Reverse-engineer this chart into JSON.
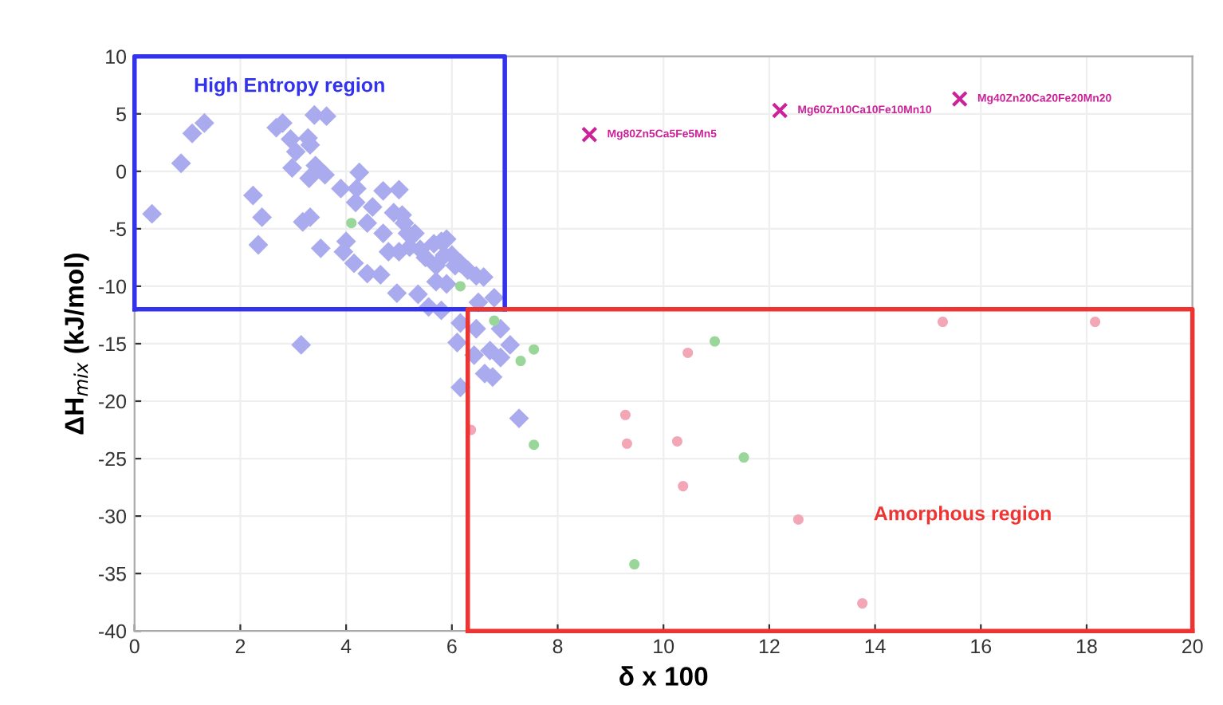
{
  "chart_data": {
    "type": "scatter",
    "xlabel": "δ x 100",
    "ylabel": "ΔH$_{mix}$ (kJ/mol)",
    "xlim": [
      0,
      20
    ],
    "ylim": [
      -40,
      10
    ],
    "xticks": [
      0,
      2,
      4,
      6,
      8,
      10,
      12,
      14,
      16,
      18,
      20
    ],
    "yticks": [
      -40,
      -35,
      -30,
      -25,
      -20,
      -15,
      -10,
      -5,
      0,
      5,
      10
    ],
    "grid": true,
    "series": [
      {
        "color": "#aaaaee",
        "marker": "diamond",
        "x": [
          0.33,
          0.88,
          1.09,
          1.32,
          2.24,
          2.41,
          2.34,
          2.68,
          2.8,
          2.95,
          3.05,
          2.98,
          3.28,
          3.32,
          3.4,
          3.63,
          3.42,
          3.3,
          3.6,
          3.18,
          3.32,
          3.52,
          3.9,
          4.25,
          4.2,
          4.18,
          4.0,
          3.95,
          4.15,
          4.4,
          4.65,
          4.5,
          4.7,
          5.0,
          4.4,
          4.7,
          4.8,
          4.9,
          5.06,
          5.1,
          5.16,
          5.0,
          5.3,
          5.2,
          5.4,
          5.5,
          5.66,
          5.8,
          5.9,
          5.86,
          5.7,
          6.0,
          6.06,
          6.16,
          6.3,
          6.46,
          6.6,
          6.8,
          4.96,
          5.36,
          5.7,
          5.9,
          5.56,
          5.8,
          3.15,
          6.16,
          6.46,
          6.1,
          6.42,
          6.72,
          6.92,
          6.62,
          6.77,
          6.16,
          6.92,
          7.1,
          7.27,
          6.5
        ],
        "values": [
          -3.7,
          0.7,
          3.3,
          4.2,
          -2.1,
          -4.0,
          -6.4,
          3.8,
          4.2,
          2.8,
          1.7,
          0.3,
          2.9,
          2.3,
          4.9,
          4.8,
          0.5,
          -0.6,
          -0.3,
          -4.4,
          -4.0,
          -6.7,
          -1.5,
          -0.1,
          -1.5,
          -2.7,
          -6.1,
          -7.0,
          -8.0,
          -8.9,
          -9.0,
          -3.1,
          -1.7,
          -1.6,
          -4.5,
          -5.4,
          -7.0,
          -3.6,
          -3.8,
          -4.5,
          -5.4,
          -7.0,
          -5.4,
          -6.6,
          -6.8,
          -7.5,
          -6.3,
          -6.1,
          -5.9,
          -7.3,
          -8.2,
          -7.3,
          -8.2,
          -8.0,
          -8.6,
          -9.1,
          -9.2,
          -11.0,
          -10.6,
          -10.7,
          -9.6,
          -9.8,
          -11.8,
          -12.1,
          -15.1,
          -13.2,
          -13.7,
          -14.9,
          -16.0,
          -15.6,
          -16.2,
          -17.6,
          -17.9,
          -18.8,
          -13.7,
          -15.1,
          -21.5,
          -11.4
        ]
      },
      {
        "color": "#99d699",
        "marker": "circle",
        "x": [
          4.1,
          6.16,
          6.8,
          7.3,
          7.55,
          7.55,
          10.97,
          11.52,
          9.45
        ],
        "values": [
          -4.5,
          -10.0,
          -13.0,
          -16.5,
          -15.5,
          -23.8,
          -14.8,
          -24.9,
          -34.2
        ]
      },
      {
        "color": "#f2a6b6",
        "marker": "circle",
        "x": [
          6.36,
          15.28,
          18.16,
          10.46,
          9.28,
          9.31,
          10.26,
          10.37,
          12.55,
          13.76
        ],
        "values": [
          -22.5,
          -13.1,
          -13.1,
          -15.8,
          -21.2,
          -23.7,
          -23.5,
          -27.4,
          -30.3,
          -37.6
        ]
      },
      {
        "color": "#cc2299",
        "marker": "cross",
        "x": [
          8.6,
          12.2,
          15.6
        ],
        "values": [
          3.2,
          5.3,
          6.3
        ]
      },
      {
        "type": "line",
        "color": "#3333ee",
        "marker": "none",
        "x": [
          0,
          0,
          7,
          7
        ],
        "values": [
          -12,
          10,
          10,
          -12
        ]
      },
      {
        "type": "line",
        "color": "#3333ee",
        "marker": "none",
        "x": [
          0,
          7
        ],
        "values": [
          -12,
          -12
        ]
      },
      {
        "type": "line",
        "color": "#ee3333",
        "marker": "none",
        "x": [
          6.3,
          6.3,
          20,
          20
        ],
        "values": [
          -40,
          -12,
          -12,
          -40
        ]
      },
      {
        "type": "line",
        "color": "#ee3333",
        "marker": "none",
        "x": [
          6.3,
          20
        ],
        "values": [
          -40,
          -40
        ]
      }
    ],
    "annotations": [
      "High Entropy region",
      "Amorphous region",
      {
        "text": "Mg80Zn5Ca5Fe5Mn5",
        "x": 8.6,
        "y": 3.2
      },
      {
        "text": "Mg60Zn10Ca10Fe10Mn10",
        "x": 12.2,
        "y": 5.3
      },
      {
        "text": "Mg40Zn20Ca20Fe20Mn20",
        "x": 15.6,
        "y": 6.3
      }
    ]
  }
}
